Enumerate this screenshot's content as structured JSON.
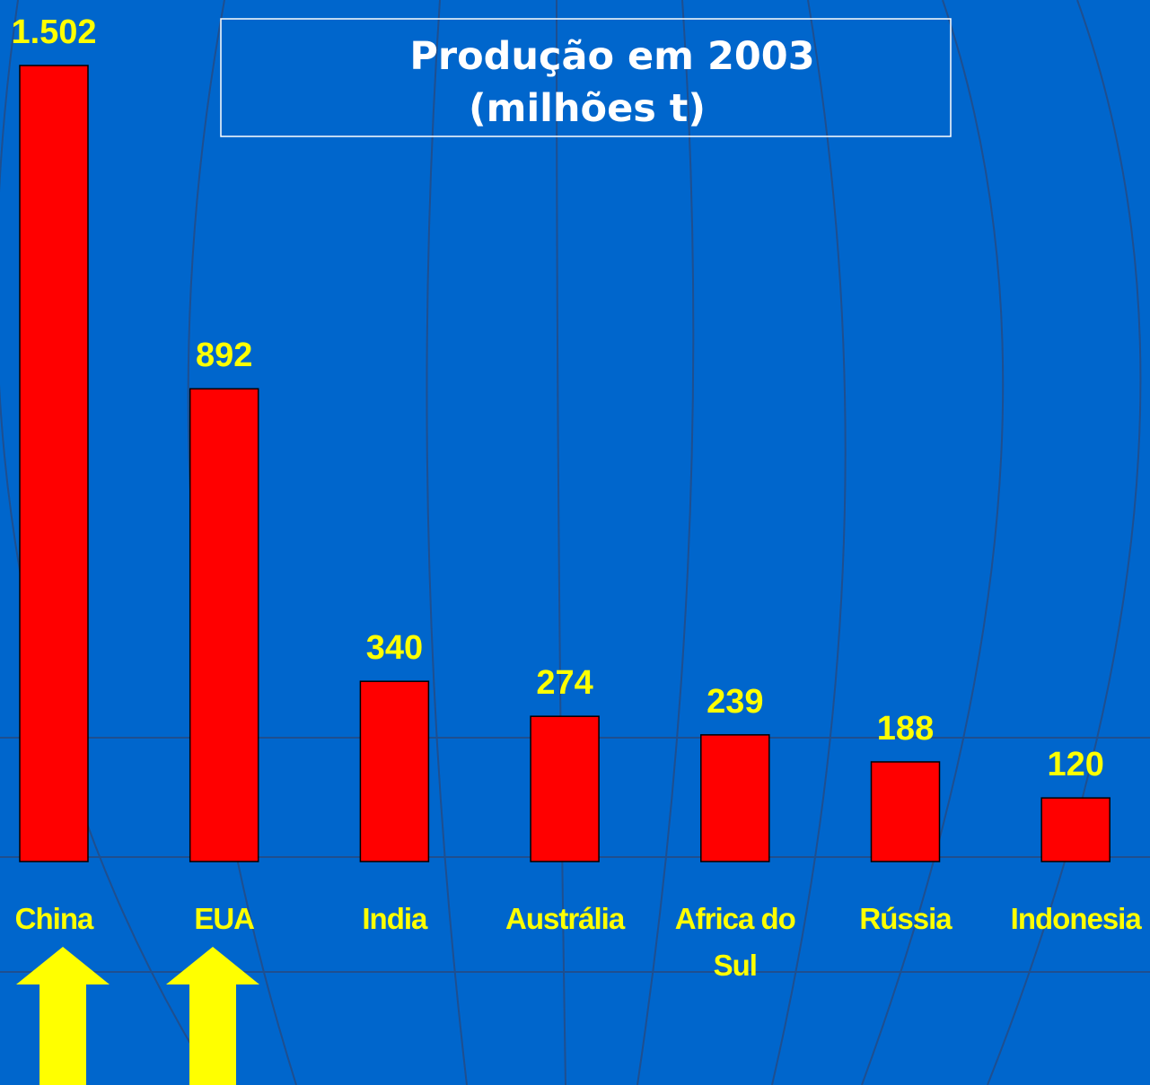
{
  "chart_data": {
    "type": "bar",
    "title": [
      "Produção em 2003",
      "(milhões t)"
    ],
    "categories": [
      "China",
      "EUA",
      "India",
      "Austrália",
      "Africa do Sul",
      "Rússia",
      "Indonesia"
    ],
    "values": [
      1502,
      892,
      340,
      274,
      239,
      188,
      120
    ],
    "value_labels": [
      "1.502",
      "892",
      "340",
      "274",
      "239",
      "188",
      "120"
    ],
    "color": "#ff0000"
  }
}
